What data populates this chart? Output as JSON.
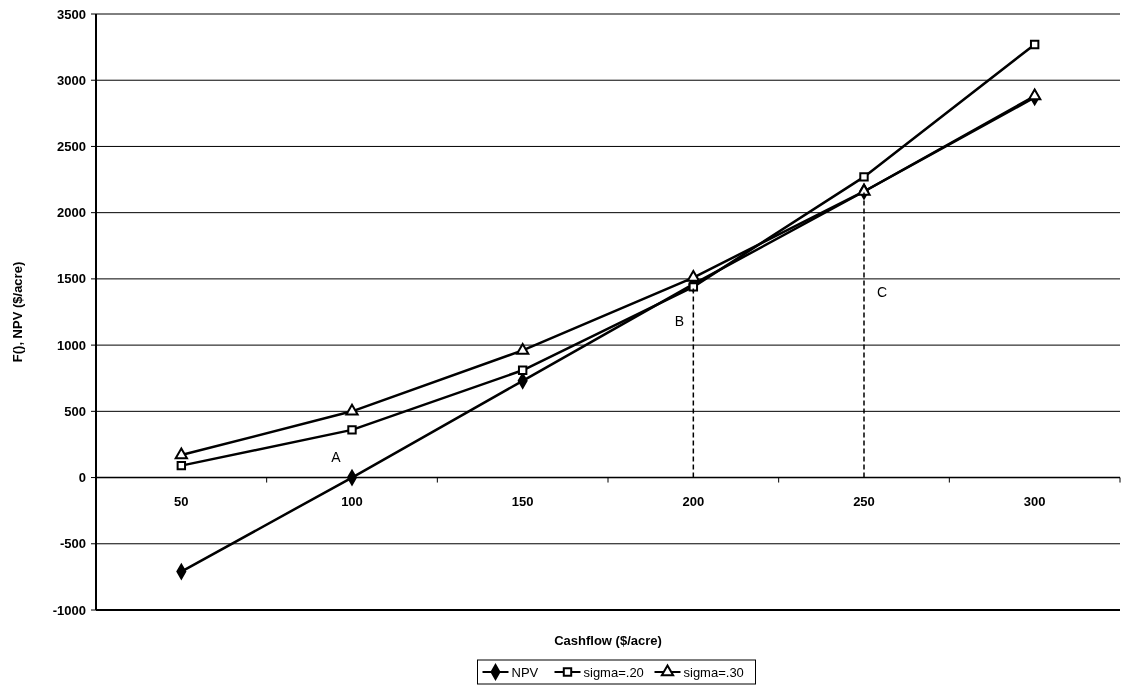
{
  "chart_data": {
    "type": "line",
    "xlabel": "Cashflow ($/acre)",
    "ylabel": "F(), NPV ($/acre)",
    "categories": [
      "50",
      "100",
      "150",
      "200",
      "250",
      "300"
    ],
    "series": [
      {
        "name": "NPV",
        "color": "#000000",
        "marker": "diamond",
        "values": [
          -710,
          0,
          730,
          1460,
          2160,
          2870
        ]
      },
      {
        "name": "sigma=.20",
        "color": "#000000",
        "marker": "square",
        "values": [
          90,
          360,
          810,
          1440,
          2270,
          3270
        ]
      },
      {
        "name": "sigma=.30",
        "color": "#000000",
        "marker": "triangle",
        "values": [
          170,
          500,
          960,
          1510,
          2160,
          2880
        ]
      },
      {
        "color": "#000000",
        "line_style": "dashed",
        "x": [
          "200",
          "200"
        ],
        "values": [
          0,
          1440
        ]
      },
      {
        "color": "#000000",
        "line_style": "dashed",
        "x": [
          "250",
          "250"
        ],
        "values": [
          0,
          2160
        ]
      }
    ],
    "ylim": [
      -1000,
      3500
    ],
    "yticks": [
      -1000,
      -500,
      0,
      500,
      1000,
      1500,
      2000,
      2500,
      3000,
      3500
    ],
    "grid": "y",
    "legend": "bottom",
    "annotations": [
      {
        "text": "A",
        "x": "100",
        "y": 0
      },
      {
        "text": "B",
        "x": "200",
        "y": 1180
      },
      {
        "text": "C",
        "x": "250",
        "y": 1400
      }
    ]
  }
}
